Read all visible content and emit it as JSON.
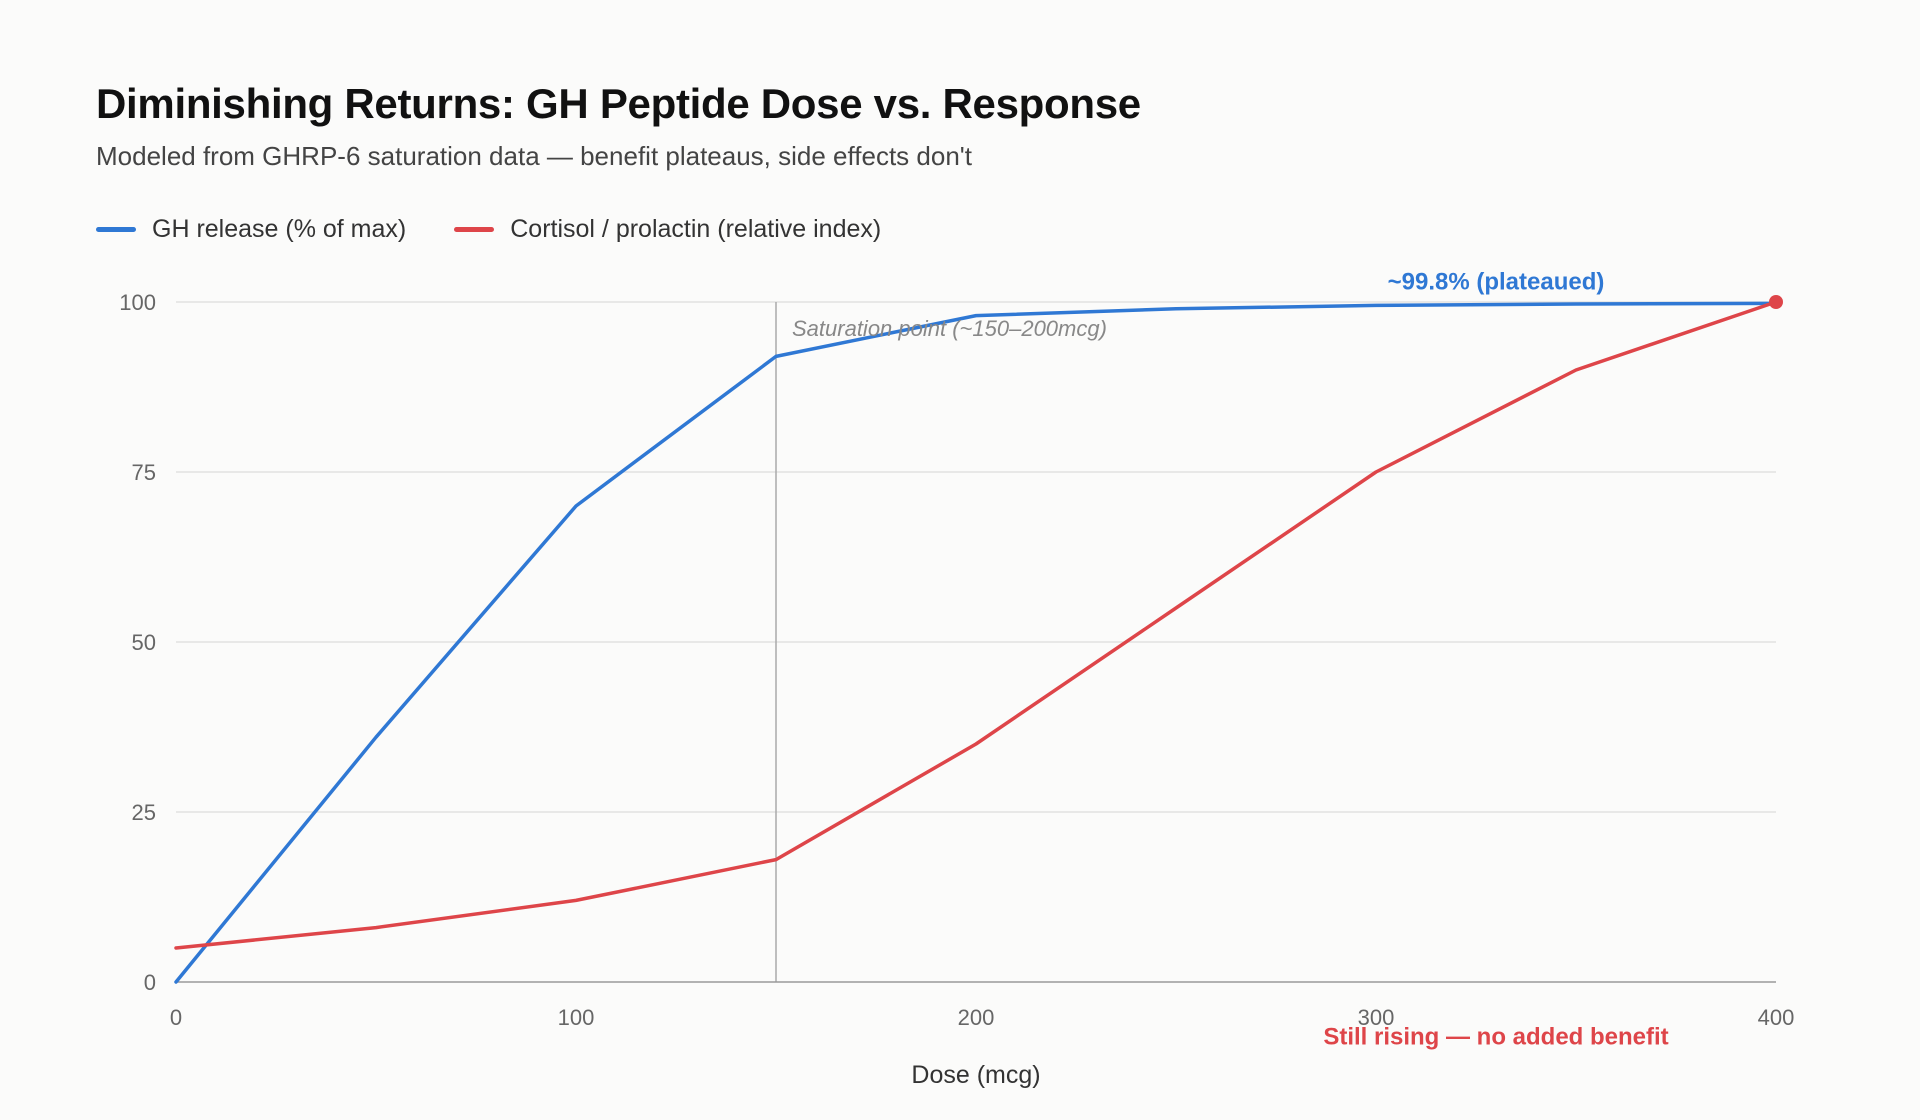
{
  "title": "Diminishing Returns: GH Peptide Dose vs. Response",
  "subtitle": "Modeled from GHRP-6 saturation data — benefit plateaus, side effects don't",
  "colors": {
    "gh": "#2f78d4",
    "cortisol": "#de4549",
    "grid": "#dcdcdc",
    "axis": "#999999",
    "marker_line": "#aaaaaa"
  },
  "chart_data": {
    "type": "line",
    "title": "Diminishing Returns: GH Peptide Dose vs. Response",
    "subtitle": "Modeled from GHRP-6 saturation data — benefit plateaus, side effects don't",
    "xlabel": "Dose (mcg)",
    "ylabel": "",
    "xlim": [
      0,
      400
    ],
    "ylim": [
      0,
      100
    ],
    "x_ticks": [
      0,
      100,
      200,
      300,
      400
    ],
    "y_ticks": [
      0,
      25,
      50,
      75,
      100
    ],
    "grid": "horizontal",
    "legend_position": "top-left",
    "series": [
      {
        "name": "GH release (% of max)",
        "color": "#2f78d4",
        "points": [
          [
            0,
            0
          ],
          [
            50,
            36
          ],
          [
            100,
            70
          ],
          [
            150,
            92
          ],
          [
            200,
            98
          ],
          [
            250,
            99
          ],
          [
            300,
            99.5
          ],
          [
            350,
            99.7
          ],
          [
            400,
            99.8
          ]
        ]
      },
      {
        "name": "Cortisol / prolactin (relative index)",
        "color": "#de4549",
        "points": [
          [
            0,
            5
          ],
          [
            50,
            8
          ],
          [
            100,
            12
          ],
          [
            150,
            18
          ],
          [
            200,
            35
          ],
          [
            250,
            55
          ],
          [
            300,
            75
          ],
          [
            350,
            90
          ],
          [
            400,
            100
          ]
        ]
      }
    ],
    "reference_line": {
      "x": 150,
      "label": "Saturation point (~150–200mcg)"
    },
    "annotations": [
      {
        "text": "~99.8% (plateaued)",
        "x": 330,
        "y": 103,
        "series": 0
      },
      {
        "text": "Still rising — no added benefit",
        "x": 330,
        "y": -8,
        "series": 1
      }
    ],
    "highlight_point": {
      "series": 1,
      "x": 400,
      "y": 100
    }
  }
}
